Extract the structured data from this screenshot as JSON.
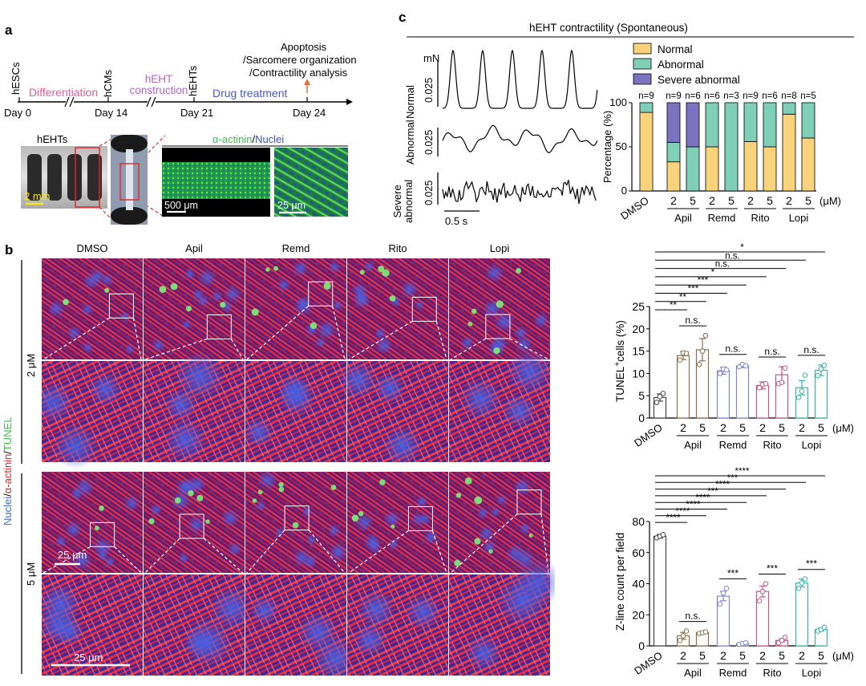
{
  "panel_a": {
    "label": "a",
    "timeline": {
      "days": [
        "Day 0",
        "Day 14",
        "Day 21",
        "Day 24"
      ],
      "stages": [
        "hESCs",
        "hCMs",
        "hEHTs"
      ],
      "phases": [
        "Differentiation",
        "hEHT construction",
        "Drug treatment"
      ],
      "phase_colors": [
        "#e75a93",
        "#b865c4",
        "#4b58c6"
      ],
      "readouts": [
        "Apoptosis",
        "/Sarcomere organization",
        "/Contractility analysis"
      ]
    },
    "images": {
      "hehts_label": "hEHTs",
      "scale_2mm": "2 mm",
      "stain_actinin": "α-actinin",
      "stain_sep": "/",
      "stain_nuclei": "Nuclei",
      "scale_500": "500 μm",
      "scale_25": "25 μm"
    }
  },
  "panel_b": {
    "label": "b",
    "columns": [
      "DMSO",
      "Apil",
      "Remd",
      "Rito",
      "Lopi"
    ],
    "rows": [
      "2 μM",
      "5 μM"
    ],
    "stain_nuclei": "Nuclei",
    "stain_sep1": "/",
    "stain_actinin": "α-actinin",
    "stain_sep2": "/",
    "stain_tunel": "TUNEL",
    "scale_top": "25 μm",
    "scale_bottom": "25 μm"
  },
  "panel_c": {
    "label": "c",
    "title": "hEHT contractility (Spontaneous)",
    "trace_unit": "mN",
    "trace_labels": [
      "Normal",
      "Abnormal",
      "Severe\nabnormal"
    ],
    "trace_scale": "0.025",
    "time_scale": "0.5 s"
  },
  "chart_data": [
    {
      "type": "bar",
      "stacked": true,
      "ylabel": "Percentage (%)",
      "ylim": [
        0,
        100
      ],
      "yticks": [
        0,
        50,
        100
      ],
      "categories": [
        "DMSO",
        "Apil 2",
        "Apil 5",
        "Remd 2",
        "Remd 5",
        "Rito 2",
        "Rito 5",
        "Lopi 2",
        "Lopi 5"
      ],
      "tick_labels": [
        "DMSO",
        "2",
        "5",
        "2",
        "5",
        "2",
        "5",
        "2",
        "5"
      ],
      "groups": [
        "Apil",
        "Remd",
        "Rito",
        "Lopi"
      ],
      "unit_label": "(μM)",
      "n_labels": [
        "n=9",
        "n=9",
        "n=6",
        "n=6",
        "n=3",
        "n=9",
        "n=6",
        "n=8",
        "n=5"
      ],
      "legend": [
        "Normal",
        "Abnormal",
        "Severe abnormal"
      ],
      "colors": [
        "#f9d27c",
        "#7fcfb6",
        "#7c73c0"
      ],
      "series": [
        {
          "name": "Normal",
          "values": [
            89,
            33,
            0,
            50,
            0,
            56,
            50,
            87,
            60
          ]
        },
        {
          "name": "Abnormal",
          "values": [
            11,
            22,
            50,
            50,
            100,
            44,
            50,
            13,
            40
          ]
        },
        {
          "name": "Severe abnormal",
          "values": [
            0,
            45,
            50,
            0,
            0,
            0,
            0,
            0,
            0
          ]
        }
      ]
    },
    {
      "type": "bar",
      "ylabel_main": "TUNEL",
      "ylabel_sup": "+",
      "ylabel_rest": "cells (%)",
      "ylim": [
        0,
        25
      ],
      "yticks": [
        0,
        5,
        10,
        15,
        20,
        25
      ],
      "categories": [
        "DMSO",
        "Apil 2",
        "Apil 5",
        "Remd 2",
        "Remd 5",
        "Rito 2",
        "Rito 5",
        "Lopi 2",
        "Lopi 5"
      ],
      "tick_labels": [
        "DMSO",
        "2",
        "5",
        "2",
        "5",
        "2",
        "5",
        "2",
        "5"
      ],
      "groups": [
        "Apil",
        "Remd",
        "Rito",
        "Lopi"
      ],
      "unit_label": "(μM)",
      "colors": [
        "#444444",
        "#8b6c4c",
        "#8b6c4c",
        "#7d86cf",
        "#7d86cf",
        "#c45586",
        "#c45586",
        "#39b0ad",
        "#39b0ad"
      ],
      "values": [
        4.6,
        14.0,
        15.3,
        10.6,
        11.7,
        7.3,
        9.7,
        6.8,
        10.7
      ],
      "errors": [
        0.8,
        0.9,
        2.5,
        0.8,
        0.4,
        0.8,
        1.8,
        1.6,
        1.2
      ],
      "points": [
        [
          3.5,
          4.8,
          5.5
        ],
        [
          13.0,
          14.6,
          14.5
        ],
        [
          12.0,
          15.0,
          18.5
        ],
        [
          10.0,
          11.0,
          10.8
        ],
        [
          11.5,
          12.0,
          11.7
        ],
        [
          6.8,
          7.5,
          7.7
        ],
        [
          7.7,
          8.0,
          11.2
        ],
        [
          4.6,
          6.0,
          9.6
        ],
        [
          9.5,
          11.0,
          11.8
        ]
      ],
      "comparisons": [
        {
          "from": 0,
          "to": 1,
          "label": "**"
        },
        {
          "from": 0,
          "to": 2,
          "label": "**"
        },
        {
          "from": 0,
          "to": 3,
          "label": "***"
        },
        {
          "from": 0,
          "to": 4,
          "label": "***"
        },
        {
          "from": 0,
          "to": 5,
          "label": "*"
        },
        {
          "from": 0,
          "to": 6,
          "label": "n.s."
        },
        {
          "from": 0,
          "to": 7,
          "label": "n.s."
        },
        {
          "from": 0,
          "to": 8,
          "label": "*"
        },
        {
          "from": 1,
          "to": 2,
          "label": "n.s."
        },
        {
          "from": 3,
          "to": 4,
          "label": "n.s."
        },
        {
          "from": 5,
          "to": 6,
          "label": "n.s."
        },
        {
          "from": 7,
          "to": 8,
          "label": "n.s."
        }
      ]
    },
    {
      "type": "bar",
      "ylabel": "Z-line count per field",
      "ylim": [
        0,
        80
      ],
      "yticks": [
        0,
        20,
        40,
        60,
        80
      ],
      "categories": [
        "DMSO",
        "Apil 2",
        "Apil 5",
        "Remd 2",
        "Remd 5",
        "Rito 2",
        "Rito 5",
        "Lopi 2",
        "Lopi 5"
      ],
      "tick_labels": [
        "DMSO",
        "2",
        "5",
        "2",
        "5",
        "2",
        "5",
        "2",
        "5"
      ],
      "groups": [
        "Apil",
        "Remd",
        "Rito",
        "Lopi"
      ],
      "unit_label": "(μM)",
      "colors": [
        "#444444",
        "#8b6c4c",
        "#8b6c4c",
        "#7d86cf",
        "#7d86cf",
        "#c45586",
        "#c45586",
        "#39b0ad",
        "#39b0ad"
      ],
      "values": [
        70.5,
        6.5,
        8.5,
        32.0,
        1.5,
        35.0,
        3.5,
        40.5,
        10.5
      ],
      "errors": [
        1.2,
        2.2,
        0.5,
        3.0,
        0.5,
        3.5,
        1.0,
        2.5,
        1.0
      ],
      "points": [
        [
          69.5,
          70.5,
          71.5
        ],
        [
          3.5,
          6.5,
          9.5
        ],
        [
          8.0,
          8.5,
          9.0
        ],
        [
          27.0,
          34.0,
          37.0
        ],
        [
          1.0,
          1.5,
          2.0
        ],
        [
          29.0,
          35.0,
          40.0
        ],
        [
          2.0,
          3.5,
          5.5
        ],
        [
          37.0,
          40.5,
          43.0
        ],
        [
          9.5,
          10.5,
          12.0
        ]
      ],
      "comparisons": [
        {
          "from": 0,
          "to": 1,
          "label": "****"
        },
        {
          "from": 0,
          "to": 2,
          "label": "****"
        },
        {
          "from": 0,
          "to": 3,
          "label": "****"
        },
        {
          "from": 0,
          "to": 4,
          "label": "****"
        },
        {
          "from": 0,
          "to": 5,
          "label": "***"
        },
        {
          "from": 0,
          "to": 6,
          "label": "****"
        },
        {
          "from": 0,
          "to": 7,
          "label": "***"
        },
        {
          "from": 0,
          "to": 8,
          "label": "****"
        },
        {
          "from": 1,
          "to": 2,
          "label": "n.s."
        },
        {
          "from": 3,
          "to": 4,
          "label": "***"
        },
        {
          "from": 5,
          "to": 6,
          "label": "***"
        },
        {
          "from": 7,
          "to": 8,
          "label": "***"
        }
      ]
    }
  ]
}
